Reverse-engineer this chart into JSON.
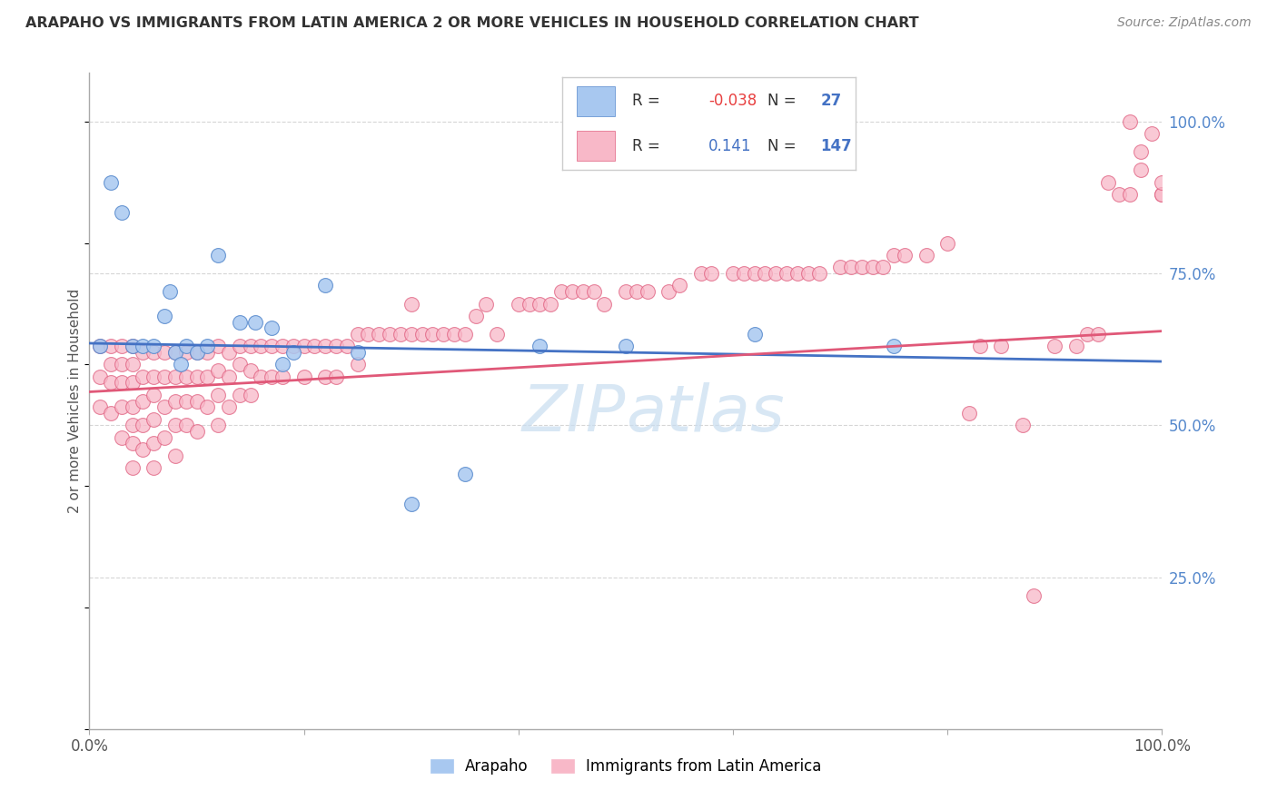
{
  "title": "ARAPAHO VS IMMIGRANTS FROM LATIN AMERICA 2 OR MORE VEHICLES IN HOUSEHOLD CORRELATION CHART",
  "source": "Source: ZipAtlas.com",
  "ylabel": "2 or more Vehicles in Household",
  "ytick_labels": [
    "25.0%",
    "50.0%",
    "75.0%",
    "100.0%"
  ],
  "ytick_values": [
    0.25,
    0.5,
    0.75,
    1.0
  ],
  "blue_scatter_color": "#a8c8f0",
  "blue_edge_color": "#5588cc",
  "pink_scatter_color": "#f8b8c8",
  "pink_edge_color": "#e06080",
  "blue_line_color": "#4472c4",
  "pink_line_color": "#e05878",
  "background_color": "#ffffff",
  "grid_color": "#cccccc",
  "title_color": "#333333",
  "watermark_color": "#c8ddf0",
  "ara_R": -0.038,
  "ara_N": 27,
  "lat_R": 0.141,
  "lat_N": 147,
  "arapaho_x": [
    0.01,
    0.02,
    0.03,
    0.04,
    0.05,
    0.06,
    0.07,
    0.075,
    0.08,
    0.085,
    0.09,
    0.1,
    0.11,
    0.12,
    0.14,
    0.155,
    0.17,
    0.18,
    0.19,
    0.22,
    0.25,
    0.3,
    0.35,
    0.42,
    0.5,
    0.62,
    0.75
  ],
  "arapaho_y": [
    0.63,
    0.9,
    0.85,
    0.63,
    0.63,
    0.63,
    0.68,
    0.72,
    0.62,
    0.6,
    0.63,
    0.62,
    0.63,
    0.78,
    0.67,
    0.67,
    0.66,
    0.6,
    0.62,
    0.73,
    0.62,
    0.37,
    0.42,
    0.63,
    0.63,
    0.65,
    0.63
  ],
  "latin_x": [
    0.01,
    0.01,
    0.01,
    0.02,
    0.02,
    0.02,
    0.02,
    0.03,
    0.03,
    0.03,
    0.03,
    0.03,
    0.04,
    0.04,
    0.04,
    0.04,
    0.04,
    0.04,
    0.04,
    0.05,
    0.05,
    0.05,
    0.05,
    0.05,
    0.06,
    0.06,
    0.06,
    0.06,
    0.06,
    0.06,
    0.07,
    0.07,
    0.07,
    0.07,
    0.08,
    0.08,
    0.08,
    0.08,
    0.08,
    0.09,
    0.09,
    0.09,
    0.09,
    0.1,
    0.1,
    0.1,
    0.1,
    0.11,
    0.11,
    0.11,
    0.12,
    0.12,
    0.12,
    0.12,
    0.13,
    0.13,
    0.13,
    0.14,
    0.14,
    0.14,
    0.15,
    0.15,
    0.15,
    0.16,
    0.16,
    0.17,
    0.17,
    0.18,
    0.18,
    0.19,
    0.2,
    0.2,
    0.21,
    0.22,
    0.22,
    0.23,
    0.23,
    0.24,
    0.25,
    0.25,
    0.26,
    0.27,
    0.28,
    0.29,
    0.3,
    0.3,
    0.31,
    0.32,
    0.33,
    0.34,
    0.35,
    0.36,
    0.37,
    0.38,
    0.4,
    0.41,
    0.42,
    0.43,
    0.44,
    0.45,
    0.46,
    0.47,
    0.48,
    0.5,
    0.51,
    0.52,
    0.54,
    0.55,
    0.57,
    0.58,
    0.6,
    0.61,
    0.62,
    0.63,
    0.64,
    0.65,
    0.66,
    0.67,
    0.68,
    0.7,
    0.71,
    0.72,
    0.73,
    0.74,
    0.75,
    0.76,
    0.78,
    0.8,
    0.82,
    0.83,
    0.85,
    0.87,
    0.88,
    0.9,
    0.92,
    0.93,
    0.94,
    0.95,
    0.96,
    0.97,
    0.97,
    0.98,
    0.98,
    0.99,
    1.0,
    1.0,
    1.0
  ],
  "latin_y": [
    0.63,
    0.58,
    0.53,
    0.63,
    0.6,
    0.57,
    0.52,
    0.63,
    0.6,
    0.57,
    0.53,
    0.48,
    0.63,
    0.6,
    0.57,
    0.53,
    0.5,
    0.47,
    0.43,
    0.62,
    0.58,
    0.54,
    0.5,
    0.46,
    0.62,
    0.58,
    0.55,
    0.51,
    0.47,
    0.43,
    0.62,
    0.58,
    0.53,
    0.48,
    0.62,
    0.58,
    0.54,
    0.5,
    0.45,
    0.62,
    0.58,
    0.54,
    0.5,
    0.62,
    0.58,
    0.54,
    0.49,
    0.62,
    0.58,
    0.53,
    0.63,
    0.59,
    0.55,
    0.5,
    0.62,
    0.58,
    0.53,
    0.63,
    0.6,
    0.55,
    0.63,
    0.59,
    0.55,
    0.63,
    0.58,
    0.63,
    0.58,
    0.63,
    0.58,
    0.63,
    0.63,
    0.58,
    0.63,
    0.63,
    0.58,
    0.63,
    0.58,
    0.63,
    0.65,
    0.6,
    0.65,
    0.65,
    0.65,
    0.65,
    0.7,
    0.65,
    0.65,
    0.65,
    0.65,
    0.65,
    0.65,
    0.68,
    0.7,
    0.65,
    0.7,
    0.7,
    0.7,
    0.7,
    0.72,
    0.72,
    0.72,
    0.72,
    0.7,
    0.72,
    0.72,
    0.72,
    0.72,
    0.73,
    0.75,
    0.75,
    0.75,
    0.75,
    0.75,
    0.75,
    0.75,
    0.75,
    0.75,
    0.75,
    0.75,
    0.76,
    0.76,
    0.76,
    0.76,
    0.76,
    0.78,
    0.78,
    0.78,
    0.8,
    0.52,
    0.63,
    0.63,
    0.5,
    0.22,
    0.63,
    0.63,
    0.65,
    0.65,
    0.9,
    0.88,
    0.88,
    1.0,
    0.95,
    0.92,
    0.98,
    0.88,
    0.88,
    0.9
  ]
}
